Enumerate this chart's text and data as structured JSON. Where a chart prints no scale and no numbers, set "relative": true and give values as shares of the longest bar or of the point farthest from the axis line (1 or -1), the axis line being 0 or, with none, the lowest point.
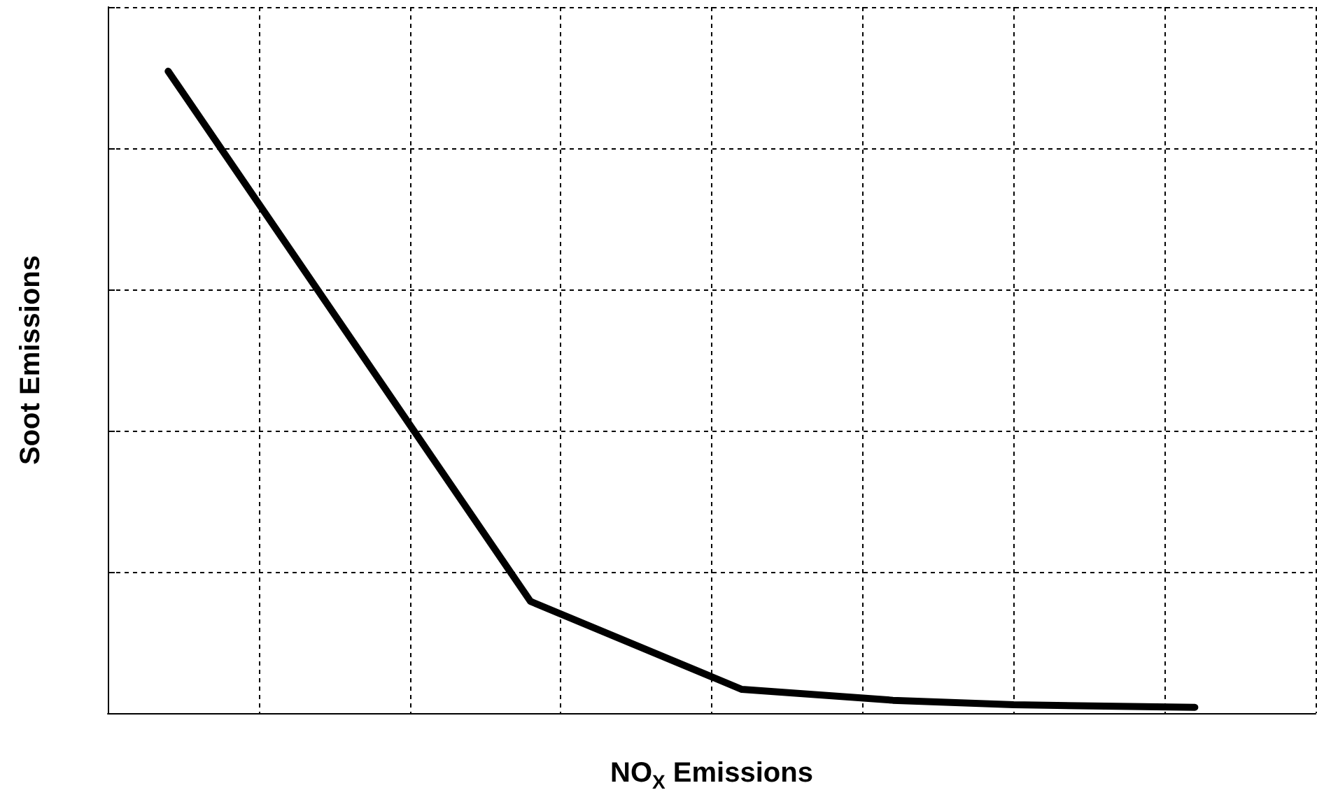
{
  "chart_data": {
    "type": "line",
    "xlabel": "NO$_{X}$ Emissions",
    "ylabel": "Soot Emissions",
    "relative": true,
    "grid": true,
    "marker": "none",
    "line_style": "solid",
    "categories": [
      null,
      null,
      null,
      null,
      null,
      null,
      null,
      null,
      null,
      null,
      null,
      null,
      null,
      null,
      null,
      null,
      null,
      null,
      null,
      null,
      null,
      null,
      null,
      null,
      null,
      null,
      null,
      null,
      null,
      null,
      null,
      null,
      null,
      null,
      null,
      null,
      null,
      null,
      null,
      null,
      null
    ],
    "series": [
      {
        "color": "#000000",
        "values": [
          null,
          null,
          1,
          null,
          null,
          null,
          null,
          null,
          null,
          null,
          null,
          null,
          null,
          null,
          0.174,
          null,
          null,
          null,
          null,
          null,
          null,
          0.037,
          null,
          null,
          null,
          null,
          0.02,
          null,
          null,
          null,
          0.013,
          null,
          null,
          null,
          null,
          null,
          0.009,
          null,
          null,
          null,
          null
        ]
      }
    ]
  }
}
